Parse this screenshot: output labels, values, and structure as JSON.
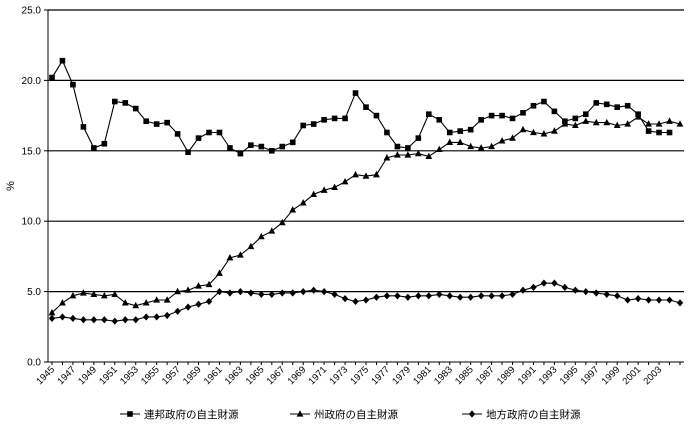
{
  "chart_data": {
    "type": "line",
    "title": "",
    "xlabel": "",
    "ylabel": "%",
    "ylim": [
      0,
      25
    ],
    "y_ticks": [
      "0.0",
      "5.0",
      "10.0",
      "15.0",
      "20.0",
      "25.0"
    ],
    "x": [
      1945,
      1946,
      1947,
      1948,
      1949,
      1950,
      1951,
      1952,
      1953,
      1954,
      1955,
      1956,
      1957,
      1958,
      1959,
      1960,
      1961,
      1962,
      1963,
      1964,
      1965,
      1966,
      1967,
      1968,
      1969,
      1970,
      1971,
      1972,
      1973,
      1974,
      1975,
      1976,
      1977,
      1978,
      1979,
      1980,
      1981,
      1982,
      1983,
      1984,
      1985,
      1986,
      1987,
      1988,
      1989,
      1990,
      1991,
      1992,
      1993,
      1994,
      1995,
      1996,
      1997,
      1998,
      1999,
      2000,
      2001,
      2002,
      2003,
      2004,
      2005
    ],
    "x_tick_labels": [
      "1945",
      "1947",
      "1949",
      "1951",
      "1953",
      "1955",
      "1957",
      "1959",
      "1961",
      "1963",
      "1965",
      "1967",
      "1969",
      "1971",
      "1973",
      "1975",
      "1977",
      "1979",
      "1981",
      "1983",
      "1985",
      "1987",
      "1989",
      "1991",
      "1993",
      "1995",
      "1997",
      "1999",
      "2001",
      "2003"
    ],
    "grid": "horizontal",
    "legend_position": "bottom",
    "series": [
      {
        "name": "連邦政府の自主財源",
        "marker": "square",
        "values": [
          20.2,
          21.4,
          19.7,
          16.7,
          15.2,
          15.5,
          18.5,
          18.4,
          18.0,
          17.1,
          16.9,
          17.0,
          16.2,
          14.9,
          15.9,
          16.3,
          16.3,
          15.2,
          14.8,
          15.4,
          15.3,
          15.0,
          15.3,
          15.6,
          16.8,
          16.9,
          17.2,
          17.3,
          17.3,
          19.1,
          18.1,
          17.5,
          16.3,
          15.3,
          15.2,
          15.9,
          17.6,
          17.2,
          16.3,
          16.4,
          16.5,
          17.2,
          17.5,
          17.5,
          17.3,
          17.7,
          18.2,
          18.5,
          17.8,
          17.1,
          17.3,
          17.6,
          18.4,
          18.3,
          18.1,
          18.2,
          17.6,
          16.4,
          16.3,
          16.3,
          null
        ]
      },
      {
        "name": "州政府の自主財源",
        "marker": "triangle",
        "values": [
          3.5,
          4.2,
          4.7,
          4.9,
          4.8,
          4.7,
          4.8,
          4.2,
          4.0,
          4.2,
          4.4,
          4.4,
          5.0,
          5.1,
          5.4,
          5.5,
          6.3,
          7.4,
          7.6,
          8.2,
          8.9,
          9.3,
          9.9,
          10.8,
          11.3,
          11.9,
          12.2,
          12.4,
          12.8,
          13.3,
          13.2,
          13.3,
          14.5,
          14.7,
          14.7,
          14.8,
          14.6,
          15.1,
          15.6,
          15.6,
          15.3,
          15.2,
          15.3,
          15.7,
          15.9,
          16.5,
          16.3,
          16.2,
          16.4,
          16.9,
          16.8,
          17.1,
          17.0,
          17.0,
          16.8,
          16.9,
          17.4,
          16.9,
          16.9,
          17.1,
          16.9
        ]
      },
      {
        "name": "地方政府の自主財源",
        "marker": "diamond",
        "values": [
          3.1,
          3.2,
          3.1,
          3.0,
          3.0,
          3.0,
          2.9,
          3.0,
          3.0,
          3.2,
          3.2,
          3.3,
          3.6,
          3.9,
          4.1,
          4.3,
          5.0,
          4.9,
          5.0,
          4.9,
          4.8,
          4.8,
          4.9,
          4.9,
          5.0,
          5.1,
          5.0,
          4.8,
          4.5,
          4.3,
          4.4,
          4.6,
          4.7,
          4.7,
          4.6,
          4.7,
          4.7,
          4.8,
          4.7,
          4.6,
          4.6,
          4.7,
          4.7,
          4.7,
          4.8,
          5.1,
          5.3,
          5.6,
          5.6,
          5.3,
          5.1,
          5.0,
          4.9,
          4.8,
          4.7,
          4.4,
          4.5,
          4.4,
          4.4,
          4.4,
          4.2
        ]
      }
    ]
  }
}
